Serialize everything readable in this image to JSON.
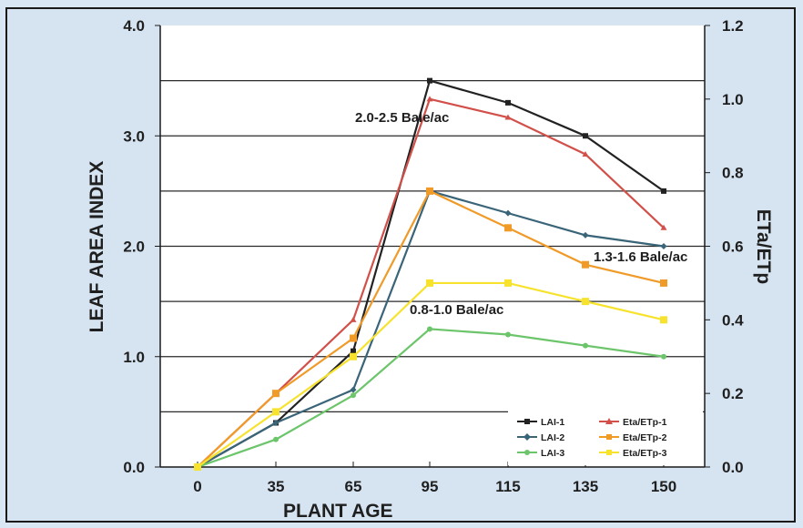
{
  "chart_data": {
    "type": "line",
    "xlabel": "PLANT AGE",
    "ylabel": "LEAF AREA INDEX",
    "y2label": "ETa/ETp",
    "x": [
      0,
      35,
      65,
      95,
      115,
      135,
      150
    ],
    "ylim": [
      0,
      4
    ],
    "y2lim": [
      0,
      1.2
    ],
    "yticks": [
      "0.0",
      "1.0",
      "2.0",
      "3.0",
      "4.0"
    ],
    "y2ticks": [
      "0.0",
      "0.2",
      "0.4",
      "0.6",
      "0.8",
      "1.0",
      "1.2"
    ],
    "grid": "horizontal",
    "legend": "bottom-right",
    "series": [
      {
        "name": "LAI-1",
        "axis": "left",
        "color": "#222222",
        "marker": "square",
        "values": [
          0,
          0.4,
          1.05,
          3.5,
          3.3,
          3.0,
          2.5
        ]
      },
      {
        "name": "LAI-2",
        "axis": "left",
        "color": "#3a6478",
        "marker": "diamond",
        "values": [
          0,
          0.4,
          0.7,
          2.5,
          2.3,
          2.1,
          2.0
        ]
      },
      {
        "name": "LAI-3",
        "axis": "left",
        "color": "#6cc56a",
        "marker": "circle",
        "values": [
          0,
          0.25,
          0.65,
          1.25,
          1.2,
          1.1,
          1.0
        ]
      },
      {
        "name": "Eta/ETp-1",
        "axis": "right",
        "color": "#d2504a",
        "marker": "triangle",
        "values": [
          0,
          0.2,
          0.4,
          1.0,
          0.95,
          0.85,
          0.65
        ]
      },
      {
        "name": "Eta/ETp-2",
        "axis": "right",
        "color": "#f09a28",
        "marker": "square",
        "values": [
          0,
          0.2,
          0.35,
          0.75,
          0.65,
          0.55,
          0.5
        ]
      },
      {
        "name": "Eta/ETp-3",
        "axis": "right",
        "color": "#f7e22e",
        "marker": "square",
        "values": [
          0,
          0.15,
          0.3,
          0.5,
          0.5,
          0.45,
          0.4
        ]
      }
    ],
    "annotations": [
      "2.0-2.5 Bale/ac",
      "1.3-1.6 Bale/ac",
      "0.8-1.0 Bale/ac"
    ]
  }
}
